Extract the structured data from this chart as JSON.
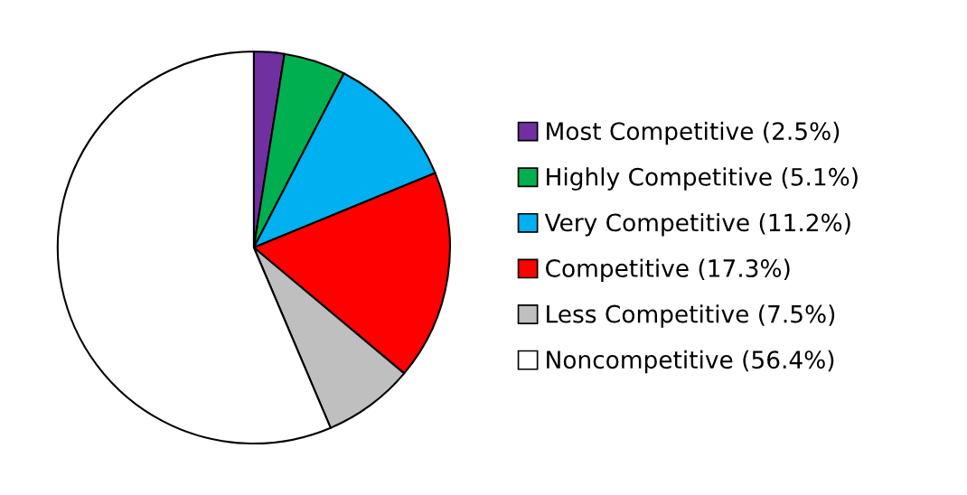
{
  "chart_data": {
    "type": "pie",
    "categories": [
      "Most Competitive (2.5%)",
      "Highly Competitive (5.1%)",
      "Very Competitive (11.2%)",
      "Competitive (17.3%)",
      "Less Competitive (7.5%)",
      "Noncompetitive (56.4%)"
    ],
    "values": [
      2.5,
      5.1,
      11.2,
      17.3,
      7.5,
      56.4
    ],
    "colors": [
      "#7030a0",
      "#00b050",
      "#00b0f0",
      "#ff0000",
      "#bfbfbf",
      "#ffffff"
    ],
    "legend": "right"
  }
}
